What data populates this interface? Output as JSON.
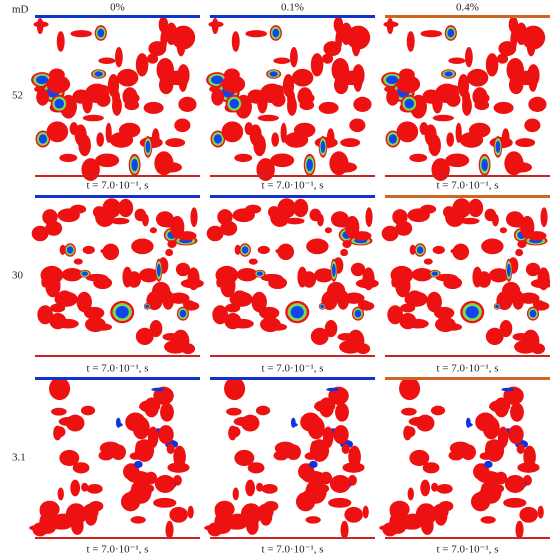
{
  "corner_label": "mD",
  "column_headers": [
    "0%",
    "0.1%",
    "0.4%"
  ],
  "rows": [
    {
      "label": "52",
      "captions": [
        "t = 7.0·10⁻¹, s",
        "t = 7.0·10⁻¹, s",
        "t = 7.0·10⁻¹, s"
      ]
    },
    {
      "label": "30",
      "captions": [
        "t = 7.0·10⁻¹, s",
        "t = 7.0·10⁻¹, s",
        "t = 7.0·10⁻¹, s"
      ]
    },
    {
      "label": "3.1",
      "captions": [
        "t = 7.0·10⁻¹, s",
        "t = 7.0·10⁻¹, s",
        "t = 7.0·10⁻¹, s"
      ]
    }
  ]
}
